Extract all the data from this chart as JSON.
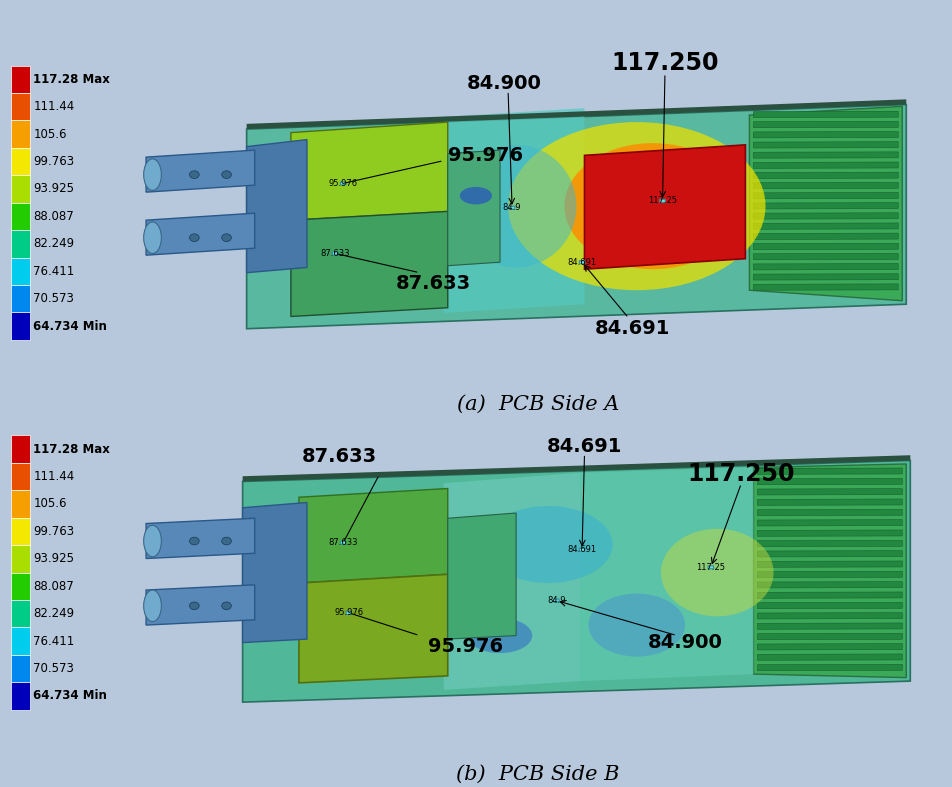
{
  "background_color": "#b8c8dc",
  "colorbar": {
    "values": [
      "117.28 Max",
      "111.44",
      "105.6",
      "99.763",
      "93.925",
      "88.087",
      "82.249",
      "76.411",
      "70.573",
      "64.734 Min"
    ],
    "colors": [
      "#cc0000",
      "#e85000",
      "#f5a000",
      "#f5e800",
      "#aadd00",
      "#22cc00",
      "#00cc88",
      "#00ccee",
      "#0088ee",
      "#0000bb"
    ]
  },
  "panel_a_label": "(a)  PCB Side A",
  "panel_b_label": "(b)  PCB Side B",
  "colorbar_fontsize": 8.5,
  "sublabel_fontsize": 15
}
